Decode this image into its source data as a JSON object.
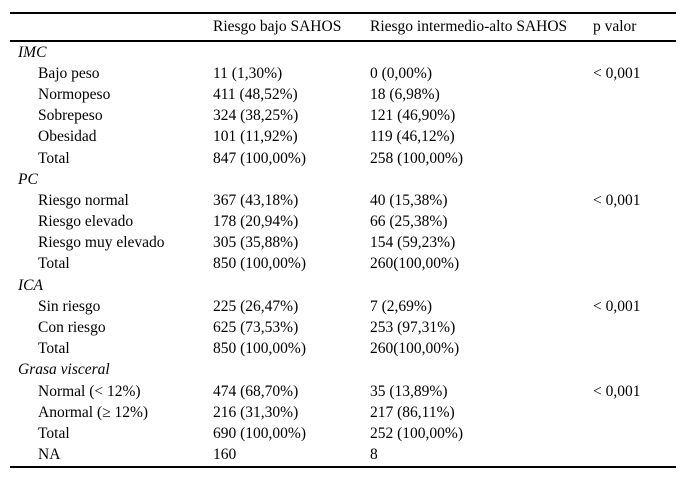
{
  "page": {
    "background": "#ffffff",
    "text_color": "#000000",
    "rule_color": "#000000"
  },
  "table": {
    "columns": {
      "label": "",
      "low": "Riesgo bajo SAHOS",
      "high": "Riesgo intermedio-alto SAHOS",
      "p": "p valor"
    },
    "sections": [
      {
        "header": "IMC",
        "rows": [
          {
            "label": "Bajo peso",
            "low": "11 (1,30%)",
            "high": "0 (0,00%)",
            "p": "< 0,001"
          },
          {
            "label": "Normopeso",
            "low": "411 (48,52%)",
            "high": "18 (6,98%)",
            "p": ""
          },
          {
            "label": "Sobrepeso",
            "low": "324 (38,25%)",
            "high": "121 (46,90%)",
            "p": ""
          },
          {
            "label": "Obesidad",
            "low": "101 (11,92%)",
            "high": "119 (46,12%)",
            "p": ""
          },
          {
            "label": "Total",
            "low": "847 (100,00%)",
            "high": "258 (100,00%)",
            "p": ""
          }
        ]
      },
      {
        "header": "PC",
        "rows": [
          {
            "label": "Riesgo normal",
            "low": "367 (43,18%)",
            "high": "40 (15,38%)",
            "p": "< 0,001"
          },
          {
            "label": "Riesgo elevado",
            "low": "178 (20,94%)",
            "high": "66 (25,38%)",
            "p": ""
          },
          {
            "label": "Riesgo muy elevado",
            "low": "305 (35,88%)",
            "high": "154 (59,23%)",
            "p": ""
          },
          {
            "label": "Total",
            "low": "850 (100,00%)",
            "high": "260(100,00%)",
            "p": ""
          }
        ]
      },
      {
        "header": "ICA",
        "rows": [
          {
            "label": "Sin riesgo",
            "low": "225 (26,47%)",
            "high": "7 (2,69%)",
            "p": "< 0,001"
          },
          {
            "label": "Con riesgo",
            "low": "625 (73,53%)",
            "high": "253 (97,31%)",
            "p": ""
          },
          {
            "label": "Total",
            "low": "850 (100,00%)",
            "high": "260(100,00%)",
            "p": ""
          }
        ]
      },
      {
        "header": "Grasa visceral",
        "rows": [
          {
            "label": "Normal (< 12%)",
            "low": "474 (68,70%)",
            "high": "35 (13,89%)",
            "p": "< 0,001"
          },
          {
            "label": "Anormal (≥ 12%)",
            "low": "216 (31,30%)",
            "high": "217 (86,11%)",
            "p": ""
          },
          {
            "label": "Total",
            "low": "690 (100,00%)",
            "high": "252 (100,00%)",
            "p": ""
          },
          {
            "label": "NA",
            "low": "160",
            "high": "8",
            "p": ""
          }
        ]
      }
    ]
  }
}
